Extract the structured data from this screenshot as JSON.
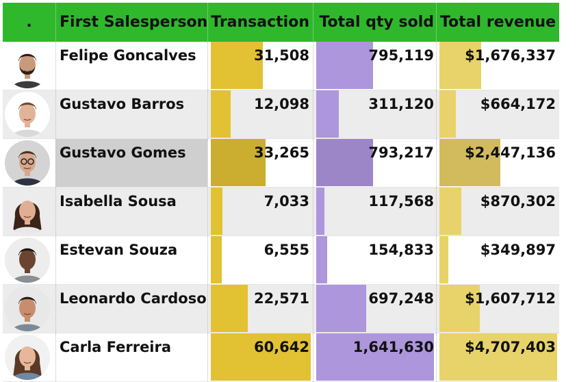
{
  "header": {
    "col0": ".",
    "col1": "First Salesperson",
    "col2": "Transaction",
    "col3": "Total qty sold",
    "col4": "Total revenue"
  },
  "colors": {
    "header_bg": "#2fb82c",
    "transaction_bar": "#e2c133",
    "qty_bar": "#ad96dc",
    "revenue_bar": "#e7d36a"
  },
  "maxima": {
    "transactions": 60642,
    "qty": 1641630,
    "revenue": 4707403
  },
  "rows": [
    {
      "name": "Felipe Goncalves",
      "transactions": "31,508",
      "t": 31508,
      "qty": "795,119",
      "q": 795119,
      "revenue": "$1,676,337",
      "r": 1676337,
      "avatar": "man-beard-avatar-icon",
      "skin": "#c99a7a",
      "hair": "#2b2018",
      "bg": "#ffffff",
      "shirt": "#3b3b3b"
    },
    {
      "name": "Gustavo Barros",
      "transactions": "12,098",
      "t": 12098,
      "qty": "311,120",
      "q": 311120,
      "revenue": "$664,172",
      "r": 664172,
      "avatar": "man-smiling-avatar-icon",
      "skin": "#e2b497",
      "hair": "#6b4a32",
      "bg": "#ffffff",
      "shirt": "#d9d9d9"
    },
    {
      "name": "Gustavo Gomes",
      "transactions": "33,265",
      "t": 33265,
      "qty": "793,217",
      "q": 793217,
      "revenue": "$2,447,136",
      "r": 2447136,
      "avatar": "man-glasses-avatar-icon",
      "skin": "#d7a88a",
      "hair": "#4a3426",
      "bg": "#d4d4d4",
      "shirt": "#2d3440"
    },
    {
      "name": "Isabella Sousa",
      "transactions": "7,033",
      "t": 7033,
      "qty": "117,568",
      "q": 117568,
      "revenue": "$870,302",
      "r": 870302,
      "avatar": "woman-dark-hair-avatar-icon",
      "skin": "#e0ae92",
      "hair": "#3a2419",
      "bg": "#ececec",
      "shirt": "#e8e8e8"
    },
    {
      "name": "Estevan Souza",
      "transactions": "6,555",
      "t": 6555,
      "qty": "154,833",
      "q": 154833,
      "revenue": "$349,897",
      "r": 349897,
      "avatar": "man-short-hair-avatar-icon",
      "skin": "#6b4532",
      "hair": "#1e1410",
      "bg": "#ededed",
      "shirt": "#8a8f95"
    },
    {
      "name": "Leonardo Cardoso",
      "transactions": "22,571",
      "t": 22571,
      "qty": "697,248",
      "q": 697248,
      "revenue": "$1,607,712",
      "r": 1607712,
      "avatar": "man-goatee-avatar-icon",
      "skin": "#c78e6e",
      "hair": "#2a1d15",
      "bg": "#e8e8e8",
      "shirt": "#7d8a96"
    },
    {
      "name": "Carla Ferreira",
      "transactions": "60,642",
      "t": 60642,
      "qty": "1,641,630",
      "q": 1641630,
      "revenue": "$4,707,403",
      "r": 4707403,
      "avatar": "woman-long-hair-avatar-icon",
      "skin": "#e6b79a",
      "hair": "#5a3a26",
      "bg": "#f1f1f1",
      "shirt": "#6e8aa3"
    }
  ]
}
